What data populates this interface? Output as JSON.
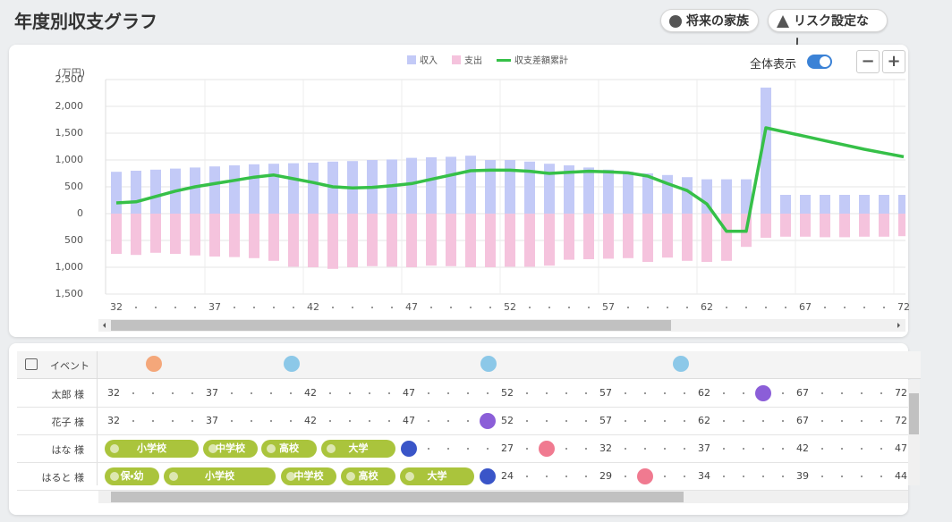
{
  "header": {
    "title": "年度別収支グラフ",
    "buttons": [
      "将来の家族",
      "リスク設定なし"
    ]
  },
  "controls": {
    "toggle_label": "全体表示",
    "toggle_on": true,
    "zoom_out": "−",
    "zoom_in": "+"
  },
  "chart_data": {
    "type": "bar",
    "unit_label": "(万円)",
    "categories": [
      32,
      null,
      null,
      null,
      null,
      37,
      null,
      null,
      null,
      null,
      42,
      null,
      null,
      null,
      null,
      47,
      null,
      null,
      null,
      null,
      52,
      null,
      null,
      null,
      null,
      57,
      null,
      null,
      null,
      null,
      62,
      null,
      null,
      null,
      null,
      67,
      null,
      null,
      null,
      null,
      72
    ],
    "series": [
      {
        "name": "収入",
        "color": "#c3caf7",
        "values": [
          780,
          800,
          820,
          840,
          860,
          880,
          900,
          920,
          930,
          940,
          950,
          970,
          980,
          1000,
          1010,
          1040,
          1050,
          1060,
          1080,
          1000,
          1000,
          970,
          930,
          900,
          860,
          820,
          780,
          750,
          720,
          680,
          640,
          640,
          640,
          2350,
          350,
          350,
          350,
          350,
          350,
          350,
          350
        ]
      },
      {
        "name": "支出",
        "color": "#f5c3dd",
        "values": [
          -750,
          -770,
          -730,
          -750,
          -780,
          -800,
          -810,
          -830,
          -880,
          -990,
          -1000,
          -1030,
          -1000,
          -980,
          -990,
          -1000,
          -970,
          -980,
          -1000,
          -1000,
          -990,
          -990,
          -970,
          -860,
          -850,
          -840,
          -830,
          -900,
          -820,
          -880,
          -900,
          -880,
          -620,
          -450,
          -430,
          -430,
          -440,
          -440,
          -430,
          -430,
          -420
        ]
      },
      {
        "name": "収支差額累計",
        "type": "line",
        "color": "#36c048",
        "values": [
          200,
          220,
          320,
          420,
          500,
          560,
          620,
          680,
          720,
          650,
          580,
          500,
          480,
          490,
          520,
          560,
          640,
          720,
          800,
          810,
          810,
          790,
          750,
          770,
          790,
          780,
          760,
          700,
          560,
          430,
          180,
          -330,
          -330,
          1600,
          1520,
          1440,
          1360,
          1280,
          1200,
          1130,
          1060
        ]
      }
    ],
    "ylim": [
      -1500,
      2500
    ],
    "yticks": [
      {
        "value": -1500,
        "label": "1,500"
      },
      {
        "value": -1000,
        "label": "1,000"
      },
      {
        "value": -500,
        "label": "500"
      },
      0,
      500,
      {
        "value": 1000,
        "label": "1,000"
      },
      {
        "value": 1500,
        "label": "1,500"
      },
      {
        "value": 2000,
        "label": "2,000"
      },
      {
        "value": 2500,
        "label": "2,500"
      }
    ],
    "grid": true
  },
  "events": {
    "header": "イベント",
    "rows": [
      {
        "name": "太郎 様",
        "ages": [
          32,
          37,
          42,
          47,
          52,
          57,
          62,
          67,
          72
        ]
      },
      {
        "name": "花子 様",
        "ages": [
          32,
          37,
          42,
          47,
          52,
          57,
          62,
          67,
          72
        ]
      },
      {
        "name": "はな 様",
        "stages": [
          "小学校",
          "中学校",
          "高校",
          "大学"
        ],
        "ages": [
          27,
          32,
          37,
          42,
          47
        ]
      },
      {
        "name": "はると 様",
        "stages": [
          "保・幼",
          "小学校",
          "中学校",
          "高校",
          "大学"
        ],
        "ages": [
          24,
          29,
          34,
          39,
          44
        ]
      }
    ]
  }
}
